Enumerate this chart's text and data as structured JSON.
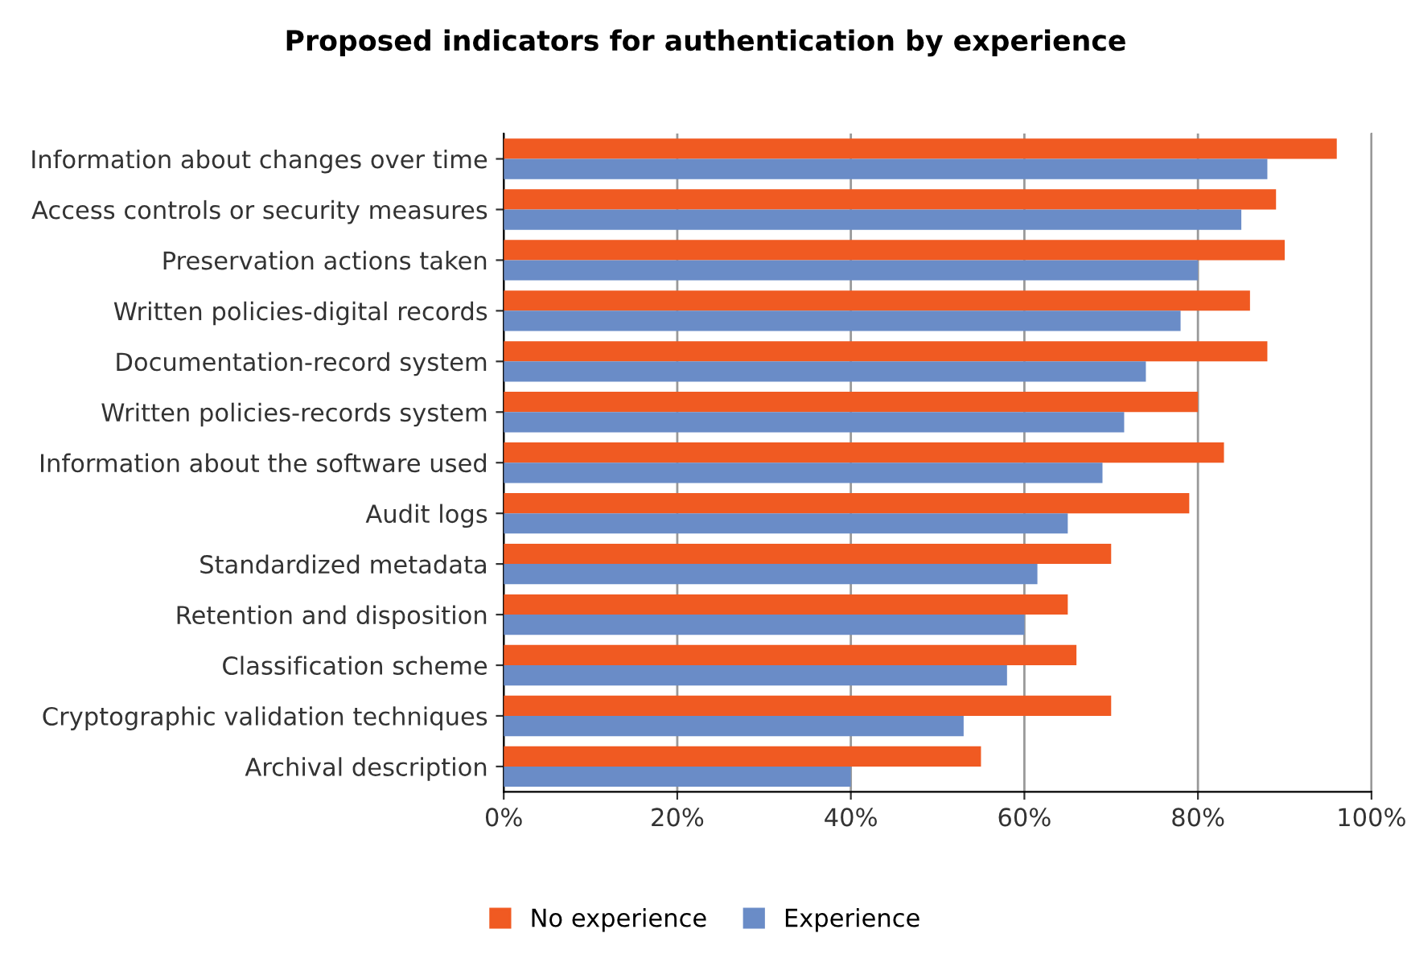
{
  "chart_data": {
    "type": "bar",
    "orientation": "horizontal",
    "title": "Proposed indicators for authentication by experience",
    "categories": [
      "Information about changes over time",
      "Access controls or security measures",
      "Preservation actions taken",
      "Written policies-digital records",
      "Documentation-record system",
      "Written policies-records system",
      "Information about the software used",
      "Audit logs",
      "Standardized metadata",
      "Retention and disposition",
      "Classification scheme",
      "Cryptographic validation techniques",
      "Archival description"
    ],
    "series": [
      {
        "name": "No experience",
        "color": "#f05a22",
        "values": [
          96,
          89,
          90,
          86,
          88,
          80,
          83,
          79,
          70,
          65,
          66,
          70,
          55
        ]
      },
      {
        "name": "Experience",
        "color": "#6a8cc7",
        "values": [
          88,
          85,
          80,
          78,
          74,
          71.5,
          69,
          65,
          61.5,
          60,
          58,
          53,
          40
        ]
      }
    ],
    "xlim": [
      0,
      100
    ],
    "xticks": [
      {
        "value": 0,
        "label": "0%"
      },
      {
        "value": 20,
        "label": "20%"
      },
      {
        "value": 40,
        "label": "40%"
      },
      {
        "value": 60,
        "label": "60%"
      },
      {
        "value": 80,
        "label": "80%"
      },
      {
        "value": 100,
        "label": "100%"
      }
    ],
    "grid": "x",
    "legend": "bottom"
  }
}
